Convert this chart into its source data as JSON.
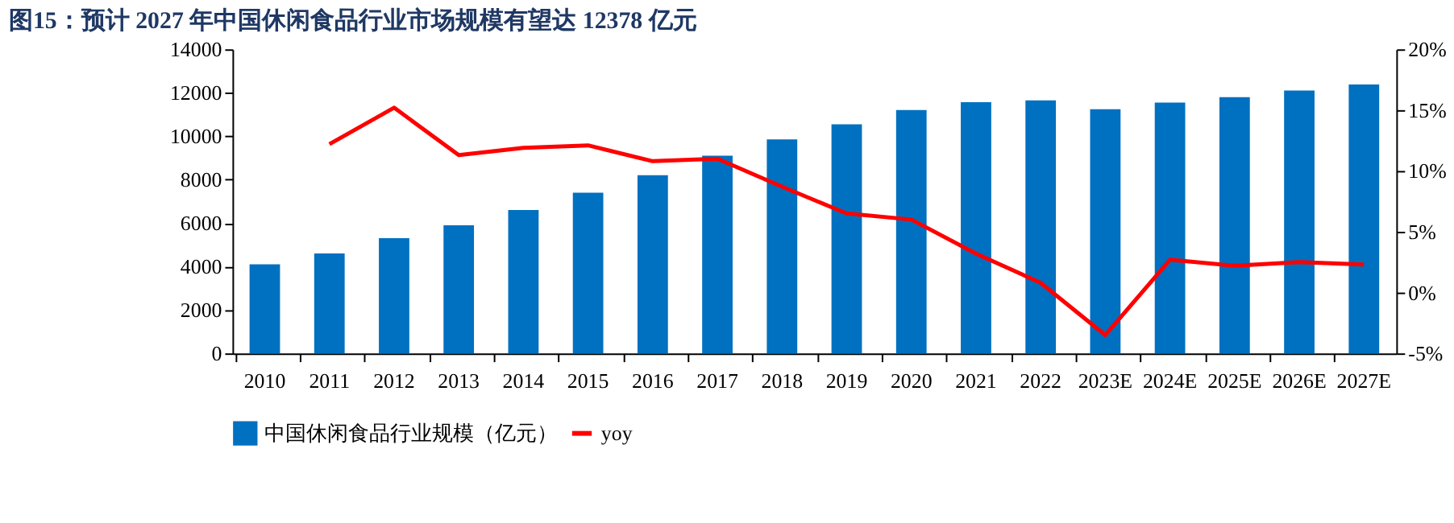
{
  "chart_data": {
    "type": "bar",
    "title": "图15：预计 2027 年中国休闲食品行业市场规模有望达 12378 亿元",
    "categories": [
      "2010",
      "2011",
      "2012",
      "2013",
      "2014",
      "2015",
      "2016",
      "2017",
      "2018",
      "2019",
      "2020",
      "2021",
      "2022",
      "2023E",
      "2024E",
      "2025E",
      "2026E",
      "2027E"
    ],
    "series": [
      {
        "name": "中国休闲食品行业规模（亿元）",
        "color": "#0070c0",
        "values": [
          4100,
          4600,
          5300,
          5900,
          6600,
          7400,
          8200,
          9100,
          9850,
          10550,
          11200,
          11560,
          11650,
          11240,
          11550,
          11800,
          12100,
          12378
        ]
      },
      {
        "name": "yoy",
        "type": "line",
        "axis": "y2",
        "color": "#ff0000",
        "values": [
          null,
          12.2,
          15.2,
          11.3,
          11.9,
          12.1,
          10.8,
          11.0,
          8.7,
          6.5,
          6.0,
          3.2,
          0.8,
          -3.5,
          2.7,
          2.2,
          2.5,
          2.3
        ]
      }
    ],
    "ylim": [
      0,
      14000
    ],
    "yticks": [
      0,
      2000,
      4000,
      6000,
      8000,
      10000,
      12000,
      14000
    ],
    "y2lim": [
      -5,
      20
    ],
    "y2ticks": [
      {
        "value": -5,
        "label": "-5%"
      },
      {
        "value": 0,
        "label": "0%"
      },
      {
        "value": 5,
        "label": "5%"
      },
      {
        "value": 10,
        "label": "10%"
      },
      {
        "value": 15,
        "label": "15%"
      },
      {
        "value": 20,
        "label": "20%"
      }
    ],
    "grid": false,
    "legend": "bottom",
    "marker": "none",
    "line_style": "solid"
  }
}
